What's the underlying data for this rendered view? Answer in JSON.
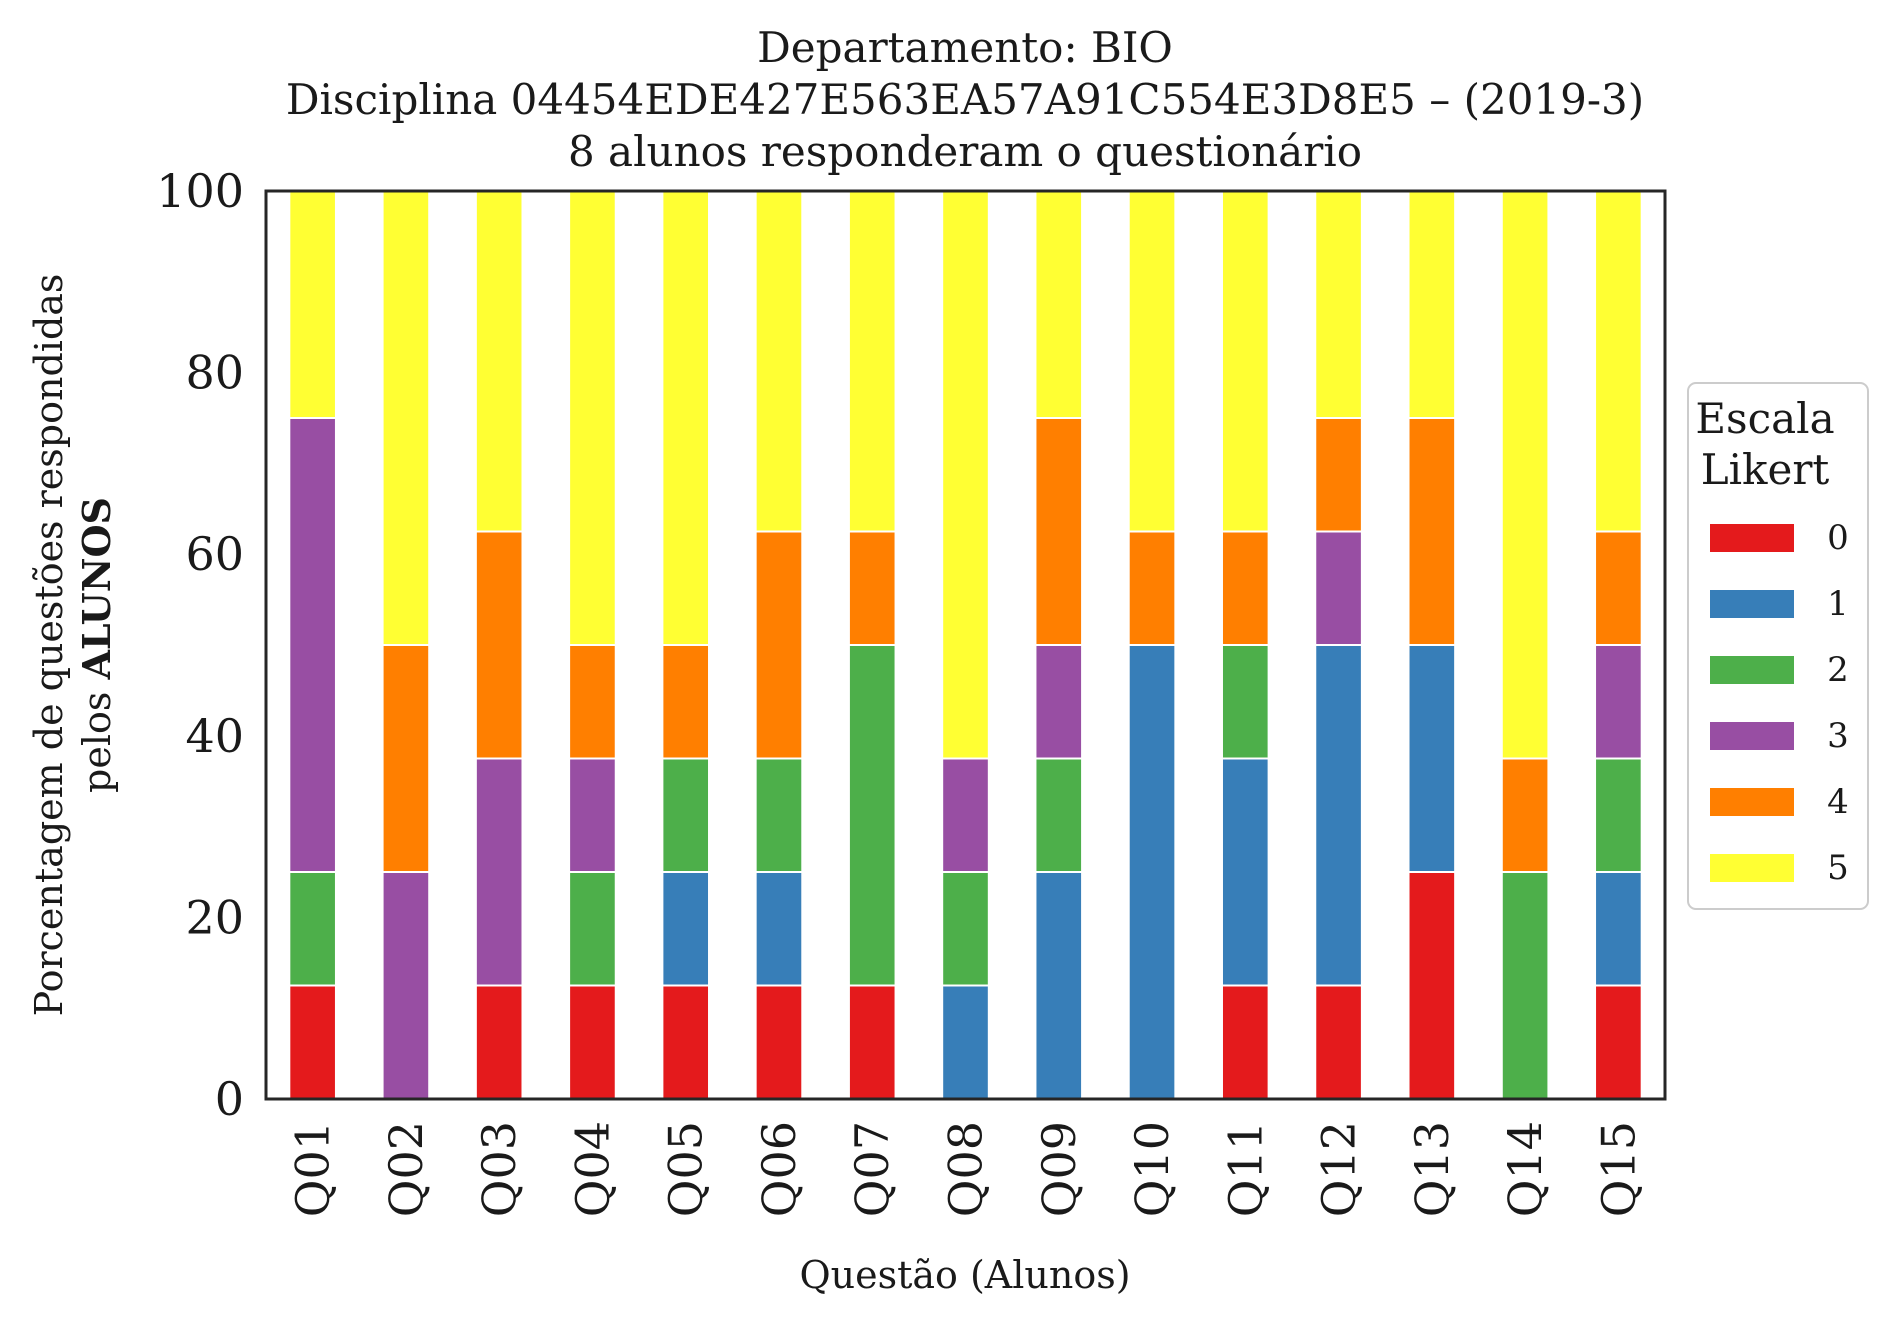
{
  "chart_data": {
    "type": "bar",
    "stacked": true,
    "title_lines": [
      "Departamento: BIO",
      "Disciplina 04454EDE427E563EA57A91C554E3D8E5 – (2019-3)",
      "8 alunos responderam o questionário"
    ],
    "xlabel": "Questão (Alunos)",
    "ylabel_line1": "Porcentagem de questões respondidas",
    "ylabel_line2_prefix": "pelos ",
    "ylabel_line2_bold": "ALUNOS",
    "ylim": [
      0,
      100
    ],
    "yticks": [
      "0",
      "20",
      "40",
      "60",
      "80",
      "100"
    ],
    "categories": [
      "Q01",
      "Q02",
      "Q03",
      "Q04",
      "Q05",
      "Q06",
      "Q07",
      "Q08",
      "Q09",
      "Q10",
      "Q11",
      "Q12",
      "Q13",
      "Q14",
      "Q15"
    ],
    "legend_title_line1": "Escala",
    "legend_title_line2": "Likert",
    "legend_position": "right",
    "grid": false,
    "series": [
      {
        "name": "0",
        "color": "#e41a1c",
        "values": [
          12.5,
          0,
          12.5,
          12.5,
          12.5,
          12.5,
          12.5,
          0,
          0,
          0,
          12.5,
          12.5,
          25,
          0,
          12.5
        ]
      },
      {
        "name": "1",
        "color": "#377eb8",
        "values": [
          0,
          0,
          0,
          0,
          12.5,
          12.5,
          0,
          12.5,
          25,
          50,
          25,
          37.5,
          25,
          0,
          12.5
        ]
      },
      {
        "name": "2",
        "color": "#4daf4a",
        "values": [
          12.5,
          0,
          0,
          12.5,
          12.5,
          12.5,
          37.5,
          12.5,
          12.5,
          0,
          12.5,
          0,
          0,
          25,
          12.5
        ]
      },
      {
        "name": "3",
        "color": "#984ea3",
        "values": [
          50,
          25,
          25,
          12.5,
          0,
          0,
          0,
          12.5,
          12.5,
          0,
          0,
          12.5,
          0,
          0,
          12.5
        ]
      },
      {
        "name": "4",
        "color": "#ff7f00",
        "values": [
          0,
          25,
          25,
          12.5,
          12.5,
          25,
          12.5,
          0,
          25,
          12.5,
          12.5,
          12.5,
          25,
          12.5,
          12.5
        ]
      },
      {
        "name": "5",
        "color": "#ffff33",
        "values": [
          25,
          50,
          37.5,
          50,
          50,
          37.5,
          37.5,
          62.5,
          25,
          37.5,
          37.5,
          25,
          25,
          62.5,
          37.5
        ]
      }
    ]
  }
}
